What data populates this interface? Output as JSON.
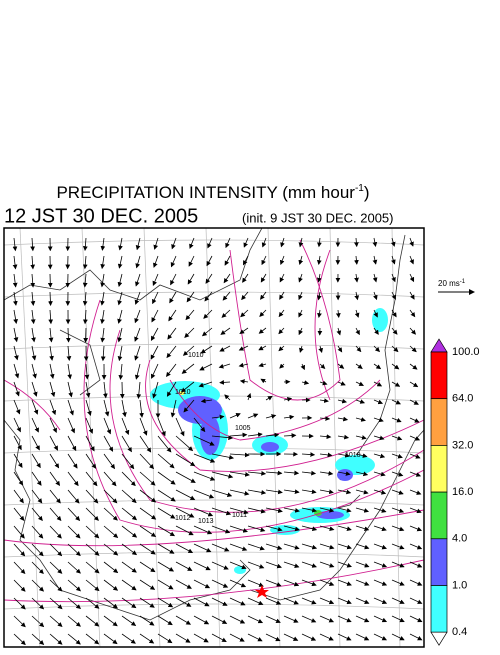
{
  "header": {
    "title": "PRECIPITATION INTENSITY (mm hour",
    "title_exp": "-1",
    "title_end": ")",
    "valid_time": "12 JST 30 DEC. 2005",
    "init_time": "(init. 9 JST 30 DEC. 2005)"
  },
  "wind_scale": {
    "label": "20 ms",
    "exp": "-1"
  },
  "isobar_labels": [
    "1010",
    "1010",
    "1005",
    "1010",
    "1012",
    "1013",
    "1011"
  ],
  "colorbar": {
    "top_color": "#b030e0",
    "bottom_color": "#ffffff",
    "levels": [
      {
        "label": "100.0",
        "color": "#ff0000"
      },
      {
        "label": "64.0",
        "color": "#ffa040"
      },
      {
        "label": "32.0",
        "color": "#ffff60"
      },
      {
        "label": "16.0",
        "color": "#40e040"
      },
      {
        "label": "4.0",
        "color": "#6060ff"
      },
      {
        "label": "1.0",
        "color": "#40ffff"
      },
      {
        "label": "0.4",
        "color": null
      }
    ]
  }
}
